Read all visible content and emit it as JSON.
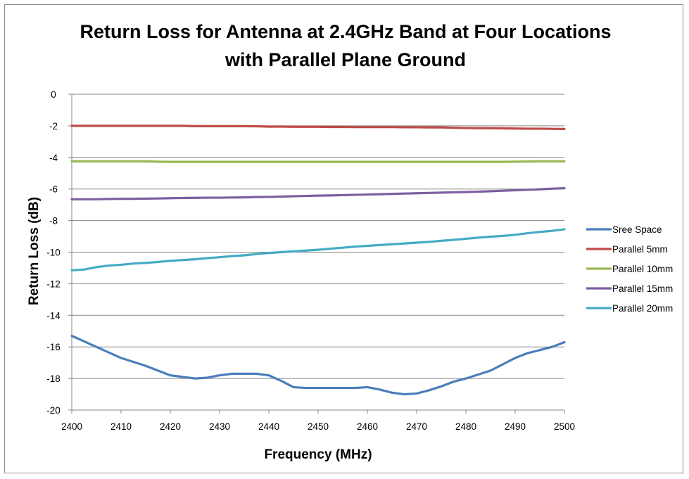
{
  "chart_data": {
    "type": "line",
    "title_lines": [
      "Return Loss for Antenna at 2.4GHz Band at Four Locations",
      "with Parallel Plane Ground"
    ],
    "xlabel": "Frequency  (MHz)",
    "ylabel": "Return Loss (dB)",
    "xlim": [
      2400,
      2500
    ],
    "ylim": [
      -20,
      0
    ],
    "xticks": [
      2400,
      2410,
      2420,
      2430,
      2440,
      2450,
      2460,
      2470,
      2480,
      2490,
      2500
    ],
    "yticks": [
      0,
      -2,
      -4,
      -6,
      -8,
      -10,
      -12,
      -14,
      -16,
      -18,
      -20
    ],
    "grid": "horizontal",
    "legend_position": "right",
    "x": [
      2400,
      2402.5,
      2405,
      2407.5,
      2410,
      2412.5,
      2415,
      2417.5,
      2420,
      2422.5,
      2425,
      2427.5,
      2430,
      2432.5,
      2435,
      2437.5,
      2440,
      2442.5,
      2445,
      2447.5,
      2450,
      2452.5,
      2455,
      2457.5,
      2460,
      2462.5,
      2465,
      2467.5,
      2470,
      2472.5,
      2475,
      2477.5,
      2480,
      2482.5,
      2485,
      2487.5,
      2490,
      2492.5,
      2495,
      2497.5,
      2500
    ],
    "series": [
      {
        "name": "Sree Space",
        "color": "#4a7ebb",
        "values": [
          -15.3,
          -15.65,
          -16.0,
          -16.35,
          -16.7,
          -16.95,
          -17.2,
          -17.5,
          -17.8,
          -17.9,
          -18.0,
          -17.95,
          -17.8,
          -17.7,
          -17.7,
          -17.7,
          -17.8,
          -18.15,
          -18.55,
          -18.6,
          -18.6,
          -18.6,
          -18.6,
          -18.6,
          -18.55,
          -18.7,
          -18.9,
          -19.0,
          -18.95,
          -18.75,
          -18.5,
          -18.2,
          -18.0,
          -17.75,
          -17.5,
          -17.1,
          -16.7,
          -16.4,
          -16.2,
          -16.0,
          -15.7
        ]
      },
      {
        "name": "Parallel 5mm",
        "color": "#be4b48",
        "values": [
          -2.0,
          -2.0,
          -2.0,
          -2.0,
          -2.0,
          -2.0,
          -2.0,
          -2.0,
          -2.0,
          -2.0,
          -2.02,
          -2.02,
          -2.02,
          -2.02,
          -2.02,
          -2.03,
          -2.05,
          -2.05,
          -2.06,
          -2.06,
          -2.06,
          -2.07,
          -2.07,
          -2.08,
          -2.08,
          -2.08,
          -2.08,
          -2.09,
          -2.09,
          -2.1,
          -2.1,
          -2.12,
          -2.14,
          -2.15,
          -2.15,
          -2.16,
          -2.17,
          -2.18,
          -2.18,
          -2.19,
          -2.2
        ]
      },
      {
        "name": "Parallel 10mm",
        "color": "#98b954",
        "values": [
          -4.25,
          -4.25,
          -4.25,
          -4.25,
          -4.25,
          -4.25,
          -4.25,
          -4.27,
          -4.28,
          -4.28,
          -4.28,
          -4.28,
          -4.28,
          -4.28,
          -4.28,
          -4.28,
          -4.28,
          -4.28,
          -4.28,
          -4.28,
          -4.28,
          -4.28,
          -4.28,
          -4.28,
          -4.28,
          -4.28,
          -4.28,
          -4.28,
          -4.28,
          -4.28,
          -4.28,
          -4.28,
          -4.28,
          -4.28,
          -4.28,
          -4.28,
          -4.27,
          -4.26,
          -4.25,
          -4.25,
          -4.25
        ]
      },
      {
        "name": "Parallel 15mm",
        "color": "#7d5fa0",
        "values": [
          -6.65,
          -6.65,
          -6.65,
          -6.63,
          -6.62,
          -6.62,
          -6.61,
          -6.6,
          -6.58,
          -6.57,
          -6.56,
          -6.55,
          -6.55,
          -6.54,
          -6.53,
          -6.51,
          -6.5,
          -6.48,
          -6.46,
          -6.44,
          -6.42,
          -6.41,
          -6.39,
          -6.37,
          -6.35,
          -6.33,
          -6.31,
          -6.29,
          -6.27,
          -6.25,
          -6.23,
          -6.21,
          -6.19,
          -6.17,
          -6.14,
          -6.11,
          -6.08,
          -6.05,
          -6.02,
          -5.98,
          -5.95
        ]
      },
      {
        "name": "Parallel 20mm",
        "color": "#46aac5",
        "values": [
          -11.15,
          -11.1,
          -10.95,
          -10.85,
          -10.8,
          -10.72,
          -10.68,
          -10.62,
          -10.55,
          -10.5,
          -10.45,
          -10.38,
          -10.32,
          -10.25,
          -10.2,
          -10.12,
          -10.05,
          -10.0,
          -9.95,
          -9.9,
          -9.85,
          -9.78,
          -9.72,
          -9.65,
          -9.6,
          -9.55,
          -9.5,
          -9.45,
          -9.4,
          -9.35,
          -9.28,
          -9.22,
          -9.15,
          -9.08,
          -9.02,
          -8.97,
          -8.9,
          -8.8,
          -8.72,
          -8.65,
          -8.55
        ]
      }
    ]
  }
}
